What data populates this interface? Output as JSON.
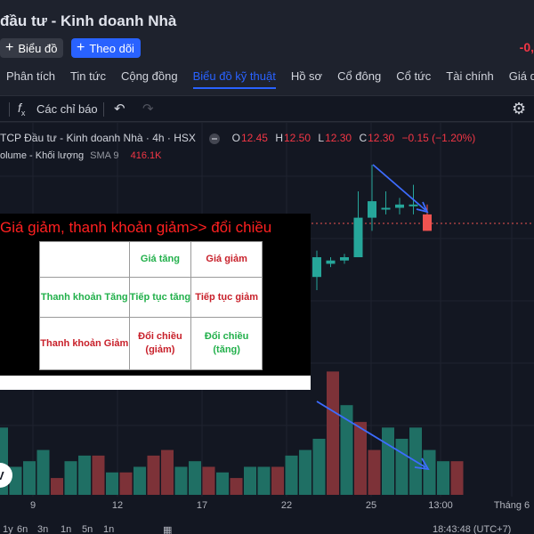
{
  "header": {
    "title": "đầu tư - Kinh doanh Nhà",
    "chart_button": "Biểu đồ",
    "follow_button": "Theo dõi",
    "change_partial": "-0,"
  },
  "tabs": [
    {
      "label": "Phân tích"
    },
    {
      "label": "Tin tức"
    },
    {
      "label": "Cộng đồng"
    },
    {
      "label": "Biểu đồ kỹ thuật",
      "active": true
    },
    {
      "label": "Hồ sơ"
    },
    {
      "label": "Cổ đông"
    },
    {
      "label": "Cổ tức"
    },
    {
      "label": "Tài chính"
    },
    {
      "label": "Giá quá khứ"
    }
  ],
  "toolbar": {
    "indicators_label": "Các chỉ báo",
    "icons": [
      "fx-icon",
      "undo-icon",
      "redo-icon",
      "gear-icon"
    ]
  },
  "legend": {
    "symbol": "TCP Đầu tư - Kinh doanh Nhà · 4h · HSX",
    "o_label": "O",
    "o_value": "12.45",
    "h_label": "H",
    "h_value": "12.50",
    "l_label": "L",
    "l_value": "12.30",
    "c_label": "C",
    "c_value": "12.30",
    "change": "−0.15 (−1.20%)",
    "volume_label": "olume - Khối lượng",
    "sma_label": "SMA 9",
    "volume_value": "416.1K"
  },
  "overlay": {
    "heading": "Giá giảm, thanh khoản giảm>>  đổi chiều",
    "cols": [
      "Giá tăng",
      "Giá giảm"
    ],
    "rows": [
      {
        "label": "Thanh khoản Tăng",
        "cells": [
          "Tiếp tục tăng",
          "Tiếp tục giảm"
        ]
      },
      {
        "label": "Thanh khoản Giảm",
        "cells": [
          "Đổi chiều\n(giảm)",
          "Đổi chiều (tăng)"
        ]
      }
    ]
  },
  "chart_data": {
    "type": "candlestick",
    "time_labels": [
      "9",
      "12",
      "17",
      "22",
      "25",
      "13:00",
      "Tháng 6"
    ],
    "price_candles": [
      {
        "open": 12.34,
        "high": 12.42,
        "low": 12.3,
        "close": 12.4
      },
      {
        "open": 12.38,
        "high": 12.4,
        "low": 12.37,
        "close": 12.39
      },
      {
        "open": 12.39,
        "high": 12.41,
        "low": 12.38,
        "close": 12.4
      },
      {
        "open": 12.4,
        "high": 12.6,
        "low": 12.4,
        "close": 12.52
      },
      {
        "open": 12.52,
        "high": 12.68,
        "low": 12.48,
        "close": 12.57
      },
      {
        "open": 12.55,
        "high": 12.6,
        "low": 12.53,
        "close": 12.55
      },
      {
        "open": 12.55,
        "high": 12.58,
        "low": 12.53,
        "close": 12.56
      },
      {
        "open": 12.56,
        "high": 12.62,
        "low": 12.53,
        "close": 12.56
      },
      {
        "open": 12.53,
        "high": 12.56,
        "low": 12.48,
        "close": 12.48
      }
    ],
    "volume_bars": [
      {
        "value": 12,
        "up": true
      },
      {
        "value": 5,
        "up": true
      },
      {
        "value": 6,
        "up": true
      },
      {
        "value": 8,
        "up": true
      },
      {
        "value": 3,
        "up": false
      },
      {
        "value": 6,
        "up": true
      },
      {
        "value": 7,
        "up": true
      },
      {
        "value": 7,
        "up": false
      },
      {
        "value": 4,
        "up": true
      },
      {
        "value": 4,
        "up": false
      },
      {
        "value": 5,
        "up": true
      },
      {
        "value": 7,
        "up": false
      },
      {
        "value": 8,
        "up": false
      },
      {
        "value": 5,
        "up": true
      },
      {
        "value": 6,
        "up": true
      },
      {
        "value": 5,
        "up": false
      },
      {
        "value": 4,
        "up": true
      },
      {
        "value": 3,
        "up": false
      },
      {
        "value": 5,
        "up": true
      },
      {
        "value": 5,
        "up": true
      },
      {
        "value": 5,
        "up": false
      },
      {
        "value": 7,
        "up": true
      },
      {
        "value": 8,
        "up": true
      },
      {
        "value": 10,
        "up": true
      },
      {
        "value": 22,
        "up": false
      },
      {
        "value": 16,
        "up": true
      },
      {
        "value": 13,
        "up": false
      },
      {
        "value": 8,
        "up": false
      },
      {
        "value": 12,
        "up": true
      },
      {
        "value": 10,
        "up": true
      },
      {
        "value": 12,
        "up": true
      },
      {
        "value": 8,
        "up": true
      },
      {
        "value": 6,
        "up": true
      },
      {
        "value": 6,
        "up": false
      }
    ]
  },
  "bottom_bar": {
    "ranges": [
      "1y",
      "6n",
      "3n",
      "1n",
      "5n",
      "1n"
    ],
    "time": "18:43:48 (UTC+7)"
  },
  "colors": {
    "up": "#26a69a",
    "down": "#ef5350",
    "accent": "#2962ff",
    "trend_arrow": "#3d6cff"
  }
}
